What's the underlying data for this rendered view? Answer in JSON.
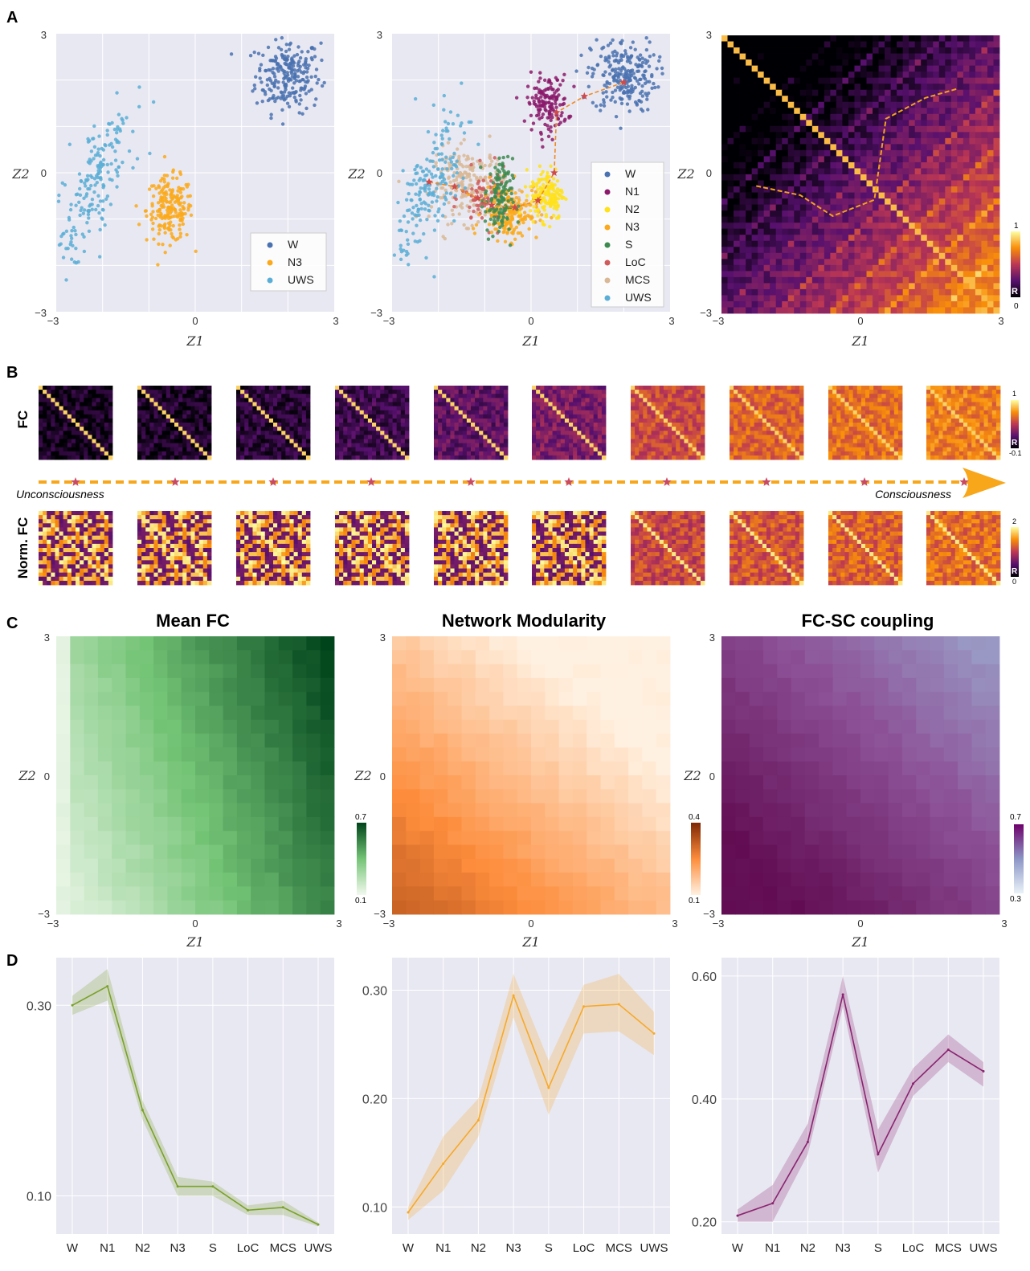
{
  "panels": {
    "A": "A",
    "B": "B",
    "C": "C",
    "D": "D"
  },
  "colors": {
    "W": "#4a72b0",
    "N1": "#8b1a6b",
    "N2": "#ffe21a",
    "N3": "#fba91a",
    "S": "#3d8a4f",
    "LoC": "#d05b5b",
    "MCS": "#d9b896",
    "UWS": "#5aaed6",
    "traj": "#f2a31b",
    "star": "#c84b63",
    "plotbg": "#e8e8f2"
  },
  "panelA": {
    "axes": {
      "xlabel": "Z1",
      "ylabel": "Z2",
      "ticks": [
        "−3",
        "0",
        "3"
      ]
    },
    "plot1": {
      "legend": [
        "W",
        "N3",
        "UWS"
      ],
      "clusters": [
        {
          "state": "W",
          "cx": 2.0,
          "cy": 2.1,
          "sx": 0.35,
          "sy": 0.4,
          "n": 240
        },
        {
          "state": "N3",
          "cx": -0.55,
          "cy": -0.8,
          "sx": 0.25,
          "sy": 0.35,
          "n": 200
        },
        {
          "state": "UWS",
          "cx": -2.2,
          "cy": -0.3,
          "sx": 0.3,
          "sy": 0.9,
          "n": 200,
          "tilt": 2.6
        }
      ]
    },
    "plot2": {
      "legend": [
        "W",
        "N1",
        "N2",
        "N3",
        "S",
        "LoC",
        "MCS",
        "UWS"
      ],
      "clusters": [
        {
          "state": "W",
          "cx": 2.0,
          "cy": 2.1,
          "sx": 0.35,
          "sy": 0.4,
          "n": 240
        },
        {
          "state": "N1",
          "cx": 0.35,
          "cy": 1.5,
          "sx": 0.22,
          "sy": 0.3,
          "n": 150
        },
        {
          "state": "MCS",
          "cx": -1.35,
          "cy": -0.25,
          "sx": 0.4,
          "sy": 0.4,
          "n": 200
        },
        {
          "state": "LoC",
          "cx": -1.0,
          "cy": -0.55,
          "sx": 0.25,
          "sy": 0.3,
          "n": 70
        },
        {
          "state": "N3",
          "cx": -0.45,
          "cy": -0.85,
          "sx": 0.3,
          "sy": 0.3,
          "n": 180
        },
        {
          "state": "S",
          "cx": -0.7,
          "cy": -0.6,
          "sx": 0.15,
          "sy": 0.45,
          "n": 130
        },
        {
          "state": "N2",
          "cx": 0.35,
          "cy": -0.45,
          "sx": 0.18,
          "sy": 0.28,
          "n": 150
        },
        {
          "state": "UWS",
          "cx": -2.2,
          "cy": -0.3,
          "sx": 0.3,
          "sy": 0.9,
          "n": 200,
          "tilt": 2.6
        }
      ],
      "trajectory": [
        [
          -2.2,
          -0.2
        ],
        [
          -1.65,
          -0.3
        ],
        [
          -1.15,
          -0.55
        ],
        [
          -0.85,
          -0.7
        ],
        [
          -0.35,
          -0.75
        ],
        [
          0.15,
          -0.6
        ],
        [
          0.5,
          0.0
        ],
        [
          0.55,
          1.3
        ],
        [
          1.15,
          1.65
        ],
        [
          2.0,
          1.95
        ]
      ]
    },
    "plot3": {
      "colorbar": {
        "max": "1",
        "min": "0",
        "label": "R"
      },
      "trajectory": [
        [
          -2.25,
          -0.25
        ],
        [
          -1.3,
          -0.45
        ],
        [
          -0.6,
          -0.9
        ],
        [
          0.3,
          -0.55
        ],
        [
          0.55,
          1.2
        ],
        [
          1.4,
          1.65
        ],
        [
          2.1,
          1.85
        ]
      ]
    }
  },
  "panelB": {
    "row_labels": [
      "FC",
      "Norm. FC"
    ],
    "arrow_left": "Unconsciousness",
    "arrow_right": "Consciousness",
    "fc_colorbar": {
      "max": "1",
      "min": "-0.1",
      "label": "R"
    },
    "norm_colorbar": {
      "max": "2",
      "min": "0",
      "label": "R"
    },
    "fc_levels": [
      0.08,
      0.1,
      0.14,
      0.2,
      0.3,
      0.38,
      0.62,
      0.7,
      0.74,
      0.78
    ],
    "norm_levels": [
      0.35,
      0.38,
      0.42,
      0.46,
      0.52,
      0.58,
      0.65,
      0.7,
      0.74,
      0.78
    ]
  },
  "panelC": {
    "axes": {
      "xlabel": "Z1",
      "ylabel": "Z2",
      "ticks": [
        "−3",
        "0",
        "3"
      ]
    },
    "maps": [
      {
        "title": "Mean FC",
        "cmap": "greens",
        "cbar_max": "0.7",
        "cbar_min": "0.1"
      },
      {
        "title": "Network Modularity",
        "cmap": "oranges",
        "cbar_max": "0.4",
        "cbar_min": "0.1"
      },
      {
        "title": "FC-SC coupling",
        "cmap": "bupu",
        "cbar_max": "0.7",
        "cbar_min": "0.3"
      }
    ]
  },
  "chart_data": [
    {
      "type": "line",
      "categories": [
        "W",
        "N1",
        "N2",
        "N3",
        "S",
        "LoC",
        "MCS",
        "UWS"
      ],
      "values": [
        0.3,
        0.32,
        0.19,
        0.11,
        0.11,
        0.085,
        0.088,
        0.07
      ],
      "lower": [
        0.29,
        0.305,
        0.18,
        0.1,
        0.1,
        0.08,
        0.08,
        0.068
      ],
      "upper": [
        0.31,
        0.338,
        0.2,
        0.12,
        0.115,
        0.09,
        0.095,
        0.072
      ],
      "ylim": [
        0.06,
        0.35
      ],
      "yticks": [
        0.1,
        0.3
      ],
      "ytick_labels": [
        "0.10",
        "0.30"
      ],
      "color": "#7aa12a"
    },
    {
      "type": "line",
      "categories": [
        "W",
        "N1",
        "N2",
        "N3",
        "S",
        "LoC",
        "MCS",
        "UWS"
      ],
      "values": [
        0.095,
        0.14,
        0.18,
        0.295,
        0.21,
        0.285,
        0.287,
        0.26
      ],
      "lower": [
        0.088,
        0.115,
        0.165,
        0.275,
        0.185,
        0.26,
        0.262,
        0.24
      ],
      "upper": [
        0.1,
        0.165,
        0.2,
        0.315,
        0.235,
        0.305,
        0.315,
        0.28
      ],
      "ylim": [
        0.075,
        0.33
      ],
      "yticks": [
        0.1,
        0.2,
        0.3
      ],
      "ytick_labels": [
        "0.10",
        "0.20",
        "0.30"
      ],
      "color": "#f6a92a"
    },
    {
      "type": "line",
      "categories": [
        "W",
        "N1",
        "N2",
        "N3",
        "S",
        "LoC",
        "MCS",
        "UWS"
      ],
      "values": [
        0.21,
        0.23,
        0.33,
        0.57,
        0.31,
        0.425,
        0.48,
        0.445
      ],
      "lower": [
        0.2,
        0.2,
        0.31,
        0.55,
        0.28,
        0.405,
        0.46,
        0.42
      ],
      "upper": [
        0.22,
        0.26,
        0.36,
        0.6,
        0.35,
        0.45,
        0.505,
        0.46
      ],
      "ylim": [
        0.18,
        0.63
      ],
      "yticks": [
        0.2,
        0.4,
        0.6
      ],
      "ytick_labels": [
        "0.20",
        "0.40",
        "0.60"
      ],
      "color": "#8a2470"
    }
  ]
}
